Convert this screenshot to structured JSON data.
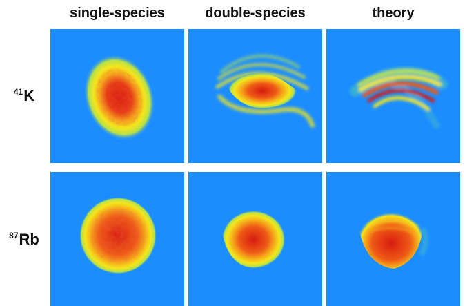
{
  "columns": [
    "single-species",
    "double-species",
    "theory"
  ],
  "rows": [
    {
      "mass": "41",
      "element": "K"
    },
    {
      "mass": "87",
      "element": "Rb"
    }
  ],
  "colors": {
    "background": "#1b8dff",
    "colormap": [
      "#1b8dff",
      "#3fb7c9",
      "#b5e04a",
      "#f3e61d",
      "#f5a91a",
      "#ee5a16",
      "#d81c10"
    ]
  }
}
